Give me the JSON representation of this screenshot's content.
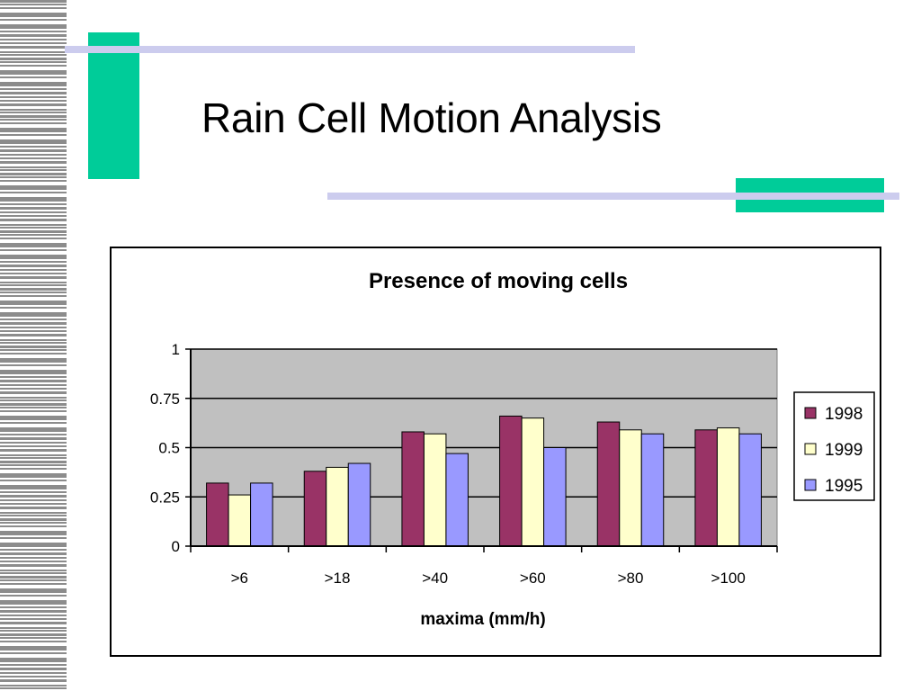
{
  "slide": {
    "title": "Rain Cell Motion Analysis",
    "colors": {
      "accent_green": "#00CC99",
      "accent_lavender": "#CCCCEE",
      "stripe_gray": "#8C8C8C"
    }
  },
  "chart_data": {
    "type": "bar",
    "title": "Presence of moving cells",
    "xlabel": "maxima (mm/h)",
    "ylabel": "",
    "categories": [
      ">6",
      ">18",
      ">40",
      ">60",
      ">80",
      ">100"
    ],
    "series": [
      {
        "name": "1998",
        "color": "#993366",
        "values": [
          0.32,
          0.38,
          0.58,
          0.66,
          0.63,
          0.59
        ]
      },
      {
        "name": "1999",
        "color": "#FFFFCC",
        "values": [
          0.26,
          0.4,
          0.57,
          0.65,
          0.59,
          0.6
        ]
      },
      {
        "name": "1995",
        "color": "#9999FF",
        "values": [
          0.32,
          0.42,
          0.47,
          0.5,
          0.57,
          0.57
        ]
      }
    ],
    "ylim": [
      0,
      1
    ],
    "yticks": [
      0,
      0.25,
      0.5,
      0.75,
      1
    ],
    "ytick_labels": [
      "0",
      "0.25",
      "0.5",
      "0.75",
      "1"
    ],
    "grid": true,
    "plot_background": "#C0C0C0",
    "legend_position": "right"
  }
}
